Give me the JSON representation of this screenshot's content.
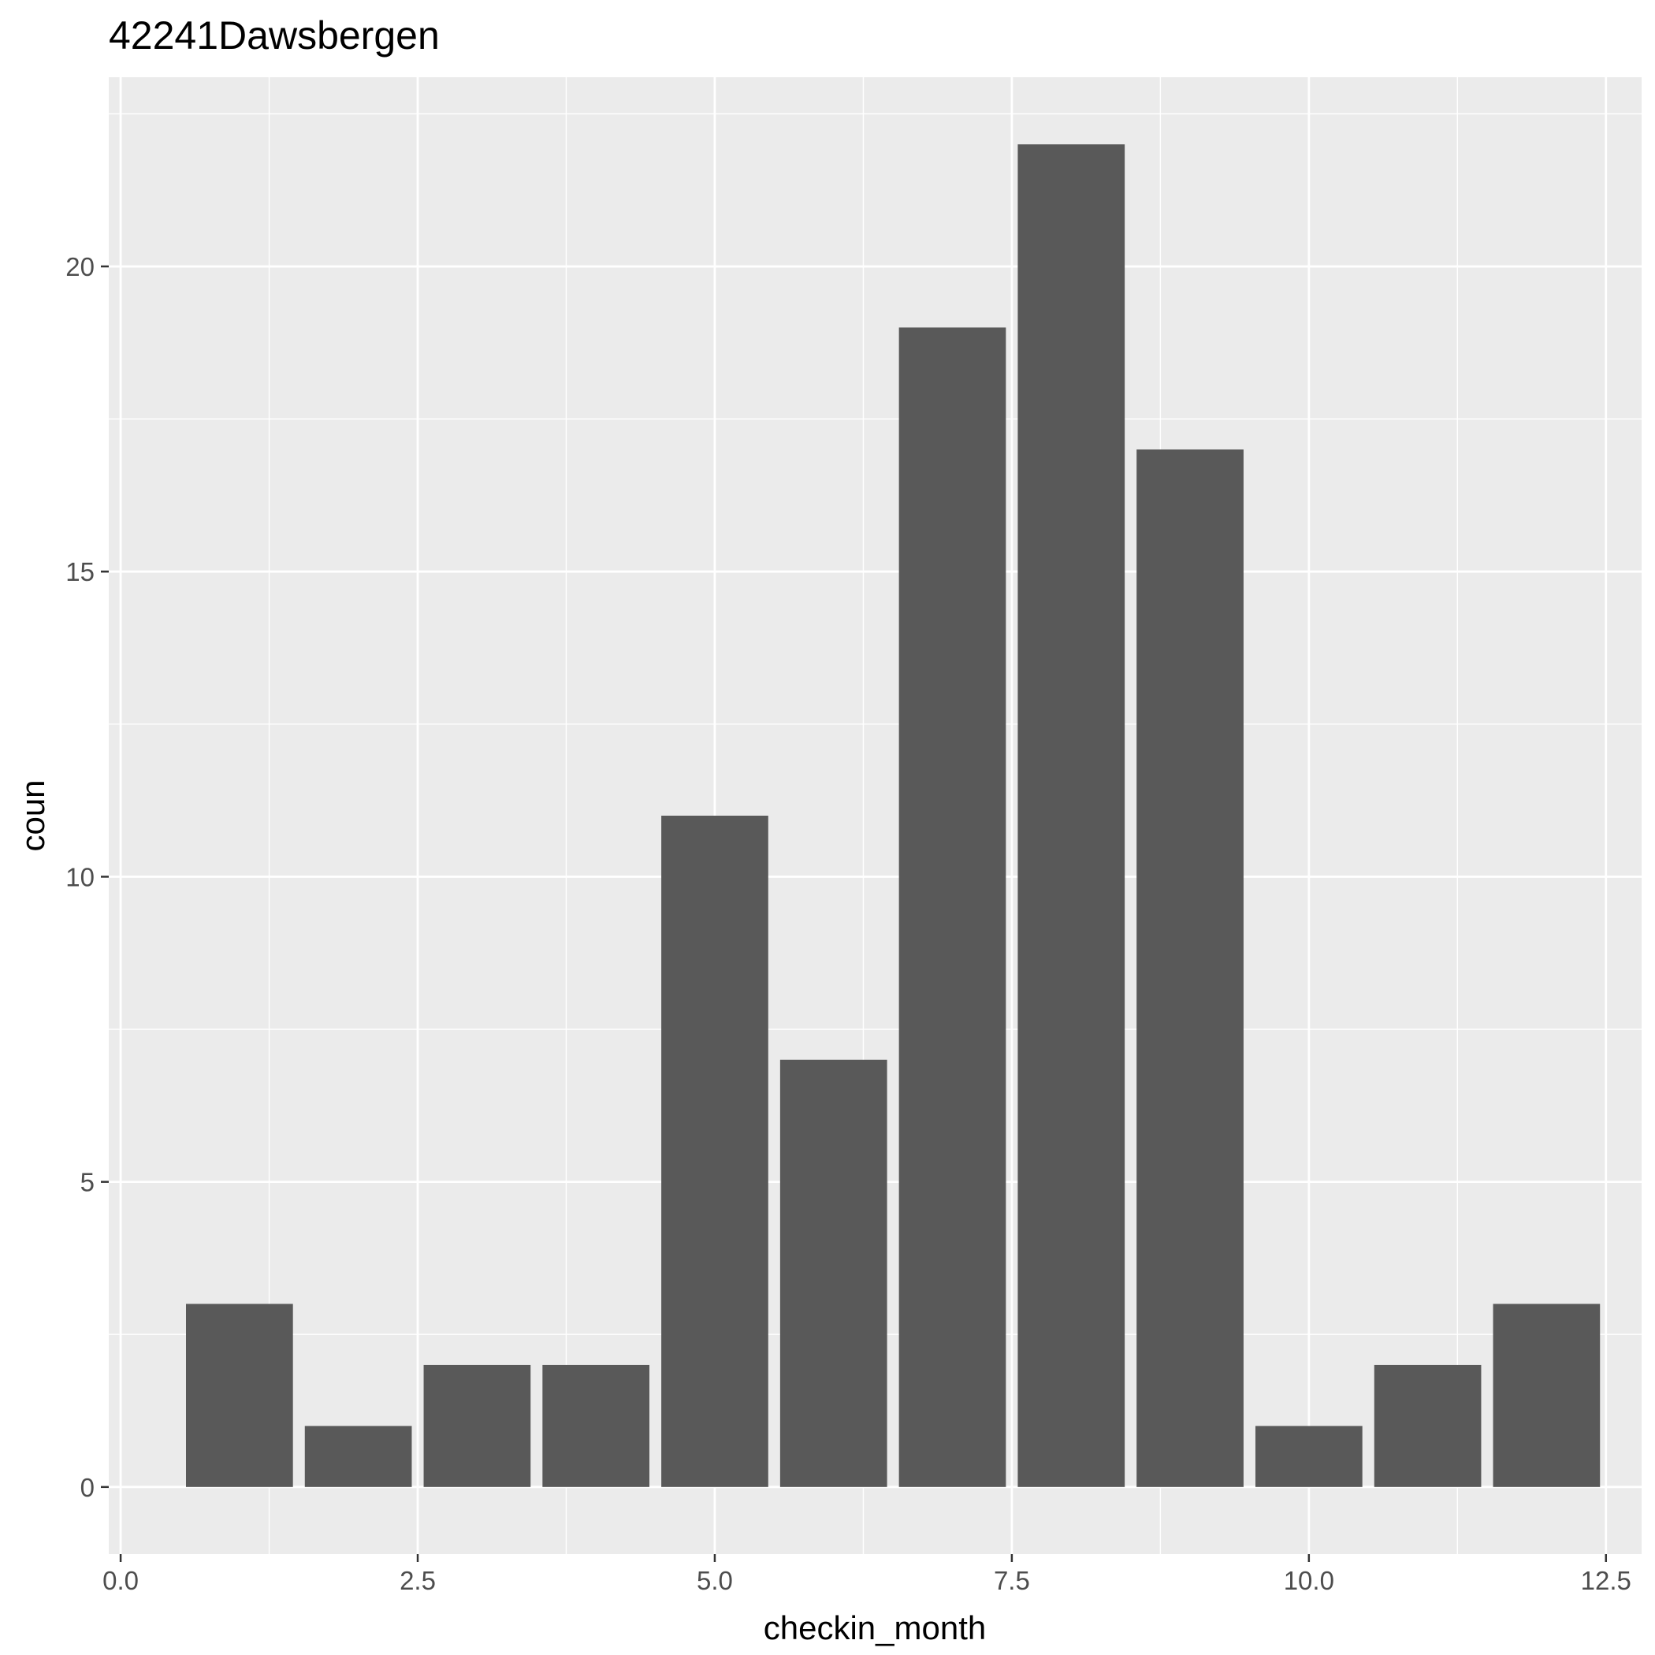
{
  "chart_data": {
    "type": "bar",
    "title": "42241Dawsbergen",
    "xlabel": "checkin_month",
    "ylabel": "coun",
    "x": [
      1,
      2,
      3,
      4,
      5,
      6,
      7,
      8,
      9,
      10,
      11,
      12
    ],
    "values": [
      3,
      1,
      2,
      2,
      11,
      7,
      19,
      22,
      17,
      1,
      2,
      3
    ],
    "bar_width": 0.9,
    "xlim": [
      -0.1,
      12.8
    ],
    "ylim": [
      -1.1,
      23.1
    ],
    "x_ticks": [
      0,
      2.5,
      5,
      7.5,
      10,
      12.5
    ],
    "x_tick_labels": [
      "0.0",
      "2.5",
      "5.0",
      "7.5",
      "10.0",
      "12.5"
    ],
    "y_ticks": [
      0,
      5,
      10,
      15,
      20
    ],
    "y_tick_labels": [
      "0",
      "5",
      "10",
      "15",
      "20"
    ],
    "grid": true,
    "legend": "none",
    "colors": {
      "panel_background": "#ebebeb",
      "grid": "#ffffff",
      "bar_fill": "#595959",
      "tick": "#333333",
      "tick_label": "#4d4d4d"
    }
  }
}
